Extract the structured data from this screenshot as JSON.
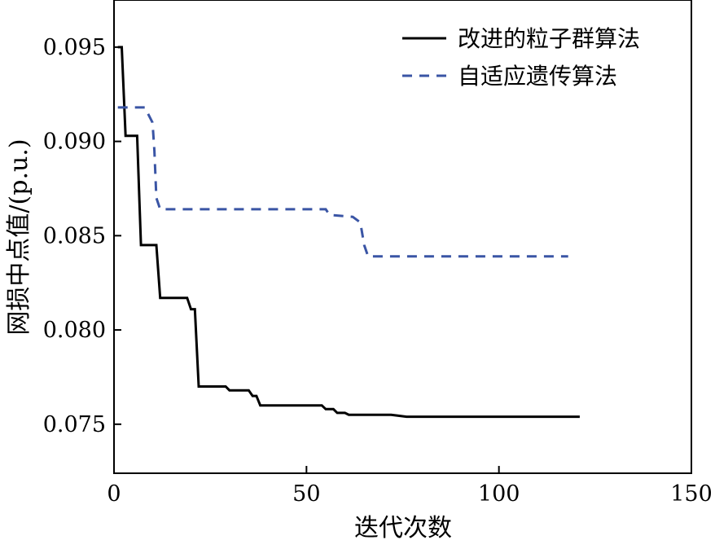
{
  "chart_data": {
    "type": "line",
    "xlabel": "迭代次数",
    "ylabel": "网损中点值/(p.u.)",
    "xlim": [
      0,
      150
    ],
    "ylim": [
      0.0724,
      0.0975
    ],
    "xticks": [
      0,
      50,
      100,
      150
    ],
    "xtick_labels": [
      "0",
      "50",
      "100",
      "150"
    ],
    "yticks": [
      0.075,
      0.08,
      0.085,
      0.09,
      0.095
    ],
    "ytick_labels": [
      "0.075",
      "0.080",
      "0.085",
      "0.090",
      "0.095"
    ],
    "grid": false,
    "legend_position": "top-right",
    "series": [
      {
        "name": "改进的粒子群算法",
        "color": "#000000",
        "style": "solid",
        "x": [
          1,
          2,
          3,
          6,
          7,
          11,
          12,
          19,
          20,
          21,
          22,
          29,
          30,
          35,
          36,
          37,
          38,
          54,
          55,
          57,
          58,
          60,
          61,
          63,
          64,
          72,
          76,
          80,
          84,
          100,
          121
        ],
        "y": [
          0.095,
          0.095,
          0.0903,
          0.0903,
          0.0845,
          0.0845,
          0.0817,
          0.0817,
          0.0811,
          0.0811,
          0.077,
          0.077,
          0.0768,
          0.0768,
          0.0765,
          0.0765,
          0.076,
          0.076,
          0.0758,
          0.0758,
          0.0756,
          0.0756,
          0.0755,
          0.0755,
          0.0755,
          0.0755,
          0.0754,
          0.0754,
          0.0754,
          0.0754,
          0.0754
        ]
      },
      {
        "name": "自适应遗传算法",
        "color": "#3a55a5",
        "style": "dashed",
        "x": [
          1,
          8,
          10,
          10.5,
          11,
          12,
          55,
          56,
          62,
          64,
          65,
          66,
          118
        ],
        "y": [
          0.0918,
          0.0918,
          0.091,
          0.0895,
          0.087,
          0.0864,
          0.0864,
          0.0861,
          0.086,
          0.0857,
          0.0845,
          0.0839,
          0.0839
        ]
      }
    ]
  }
}
